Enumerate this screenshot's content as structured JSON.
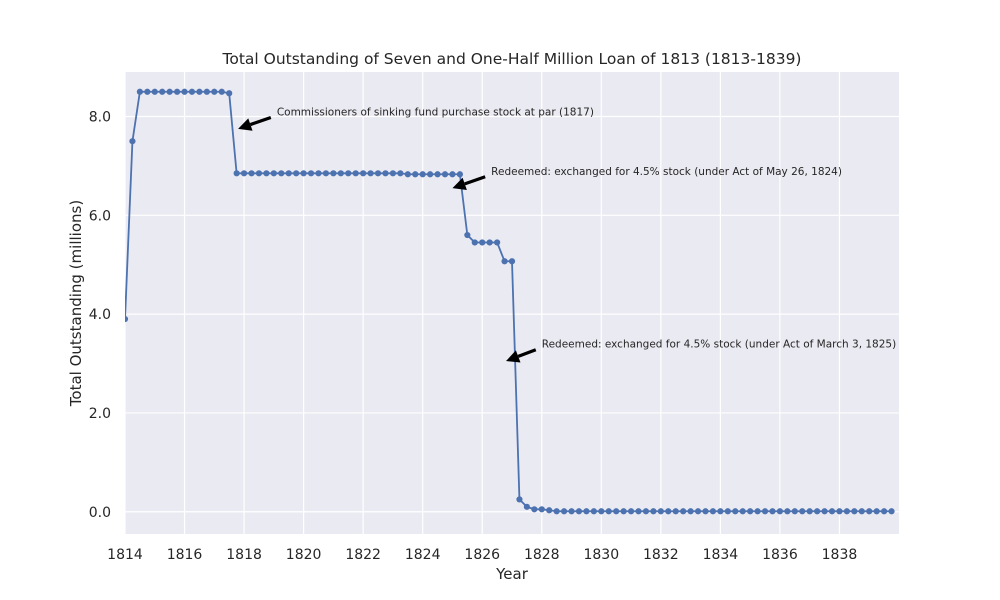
{
  "chart_data": {
    "type": "line",
    "title": "Total Outstanding of Seven and One-Half Million Loan of 1813 (1813-1839)",
    "xlabel": "Year",
    "ylabel": "Total Outstanding (millions)",
    "xlim": [
      1814,
      1840
    ],
    "ylim": [
      -0.45,
      8.9
    ],
    "x_ticks": [
      1814,
      1816,
      1818,
      1820,
      1822,
      1824,
      1826,
      1828,
      1830,
      1832,
      1834,
      1836,
      1838
    ],
    "x_tick_labels": [
      "1814",
      "1816",
      "1818",
      "1820",
      "1822",
      "1824",
      "1826",
      "1828",
      "1830",
      "1832",
      "1834",
      "1836",
      "1838"
    ],
    "y_ticks": [
      0,
      2,
      4,
      6,
      8
    ],
    "y_tick_labels": [
      "0.0",
      "2.0",
      "4.0",
      "6.0",
      "8.0"
    ],
    "grid": true,
    "background": "#eaeaf2",
    "grid_color": "#ffffff",
    "line_color": "#4c72b0",
    "annotation_color": "#000000",
    "series": [
      {
        "start_year": 1814.0,
        "step": 0.25,
        "values": [
          3.9,
          7.5,
          8.5,
          8.5,
          8.5,
          8.5,
          8.5,
          8.5,
          8.5,
          8.5,
          8.5,
          8.5,
          8.5,
          8.5,
          8.47,
          6.85,
          6.85,
          6.85,
          6.85,
          6.85,
          6.85,
          6.85,
          6.85,
          6.85,
          6.85,
          6.85,
          6.85,
          6.85,
          6.85,
          6.85,
          6.85,
          6.85,
          6.85,
          6.85,
          6.85,
          6.85,
          6.85,
          6.85,
          6.83,
          6.83,
          6.83,
          6.83,
          6.83,
          6.83,
          6.83,
          6.83,
          5.6,
          5.45,
          5.45,
          5.45,
          5.45,
          5.07,
          5.07,
          0.25,
          0.1,
          0.05,
          0.05,
          0.03,
          0.01,
          0.01,
          0.01,
          0.01,
          0.01,
          0.01,
          0.01,
          0.01,
          0.01,
          0.01,
          0.01,
          0.01,
          0.01,
          0.01,
          0.01,
          0.01,
          0.01,
          0.01,
          0.01,
          0.01,
          0.01,
          0.01,
          0.01,
          0.01,
          0.01,
          0.01,
          0.01,
          0.01,
          0.01,
          0.01,
          0.01,
          0.01,
          0.01,
          0.01,
          0.01,
          0.01,
          0.01,
          0.01,
          0.01,
          0.01,
          0.01,
          0.01,
          0.01,
          0.01,
          0.01,
          0.01
        ]
      }
    ],
    "annotations": [
      {
        "text": "Commissioners of sinking fund purchase stock at par (1817)",
        "point": [
          1817.8,
          7.75
        ],
        "text_pos": [
          1819.1,
          8.02
        ]
      },
      {
        "text": "Redeemed: exchanged for 4.5% stock (under Act of May 26, 1824)",
        "point": [
          1825.0,
          6.55
        ],
        "text_pos": [
          1826.3,
          6.82
        ]
      },
      {
        "text": "Redeemed: exchanged for 4.5% stock (under Act of March 3, 1825)",
        "point": [
          1826.8,
          3.05
        ],
        "text_pos": [
          1828.0,
          3.32
        ]
      }
    ]
  }
}
